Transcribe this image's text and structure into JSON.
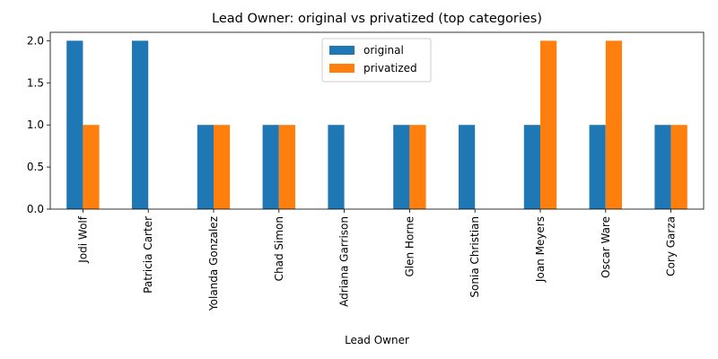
{
  "chart_data": {
    "type": "bar",
    "title": "Lead Owner: original vs privatized (top categories)",
    "xlabel": "Lead Owner",
    "ylabel": "",
    "categories": [
      "Jodi Wolf",
      "Patricia Carter",
      "Yolanda Gonzalez",
      "Chad Simon",
      "Adriana Garrison",
      "Glen Horne",
      "Sonia Christian",
      "Joan Meyers",
      "Oscar Ware",
      "Cory Garza"
    ],
    "series": [
      {
        "name": "original",
        "color": "#1f77b4",
        "values": [
          2,
          2,
          1,
          1,
          1,
          1,
          1,
          1,
          1,
          1
        ]
      },
      {
        "name": "privatized",
        "color": "#ff7f0e",
        "values": [
          1,
          0,
          1,
          1,
          0,
          1,
          0,
          2,
          2,
          1
        ]
      }
    ],
    "ylim": [
      0,
      2.1
    ],
    "yticks": [
      "0.0",
      "0.5",
      "1.0",
      "1.5",
      "2.0"
    ],
    "legend": "upper-center",
    "grid": false
  }
}
